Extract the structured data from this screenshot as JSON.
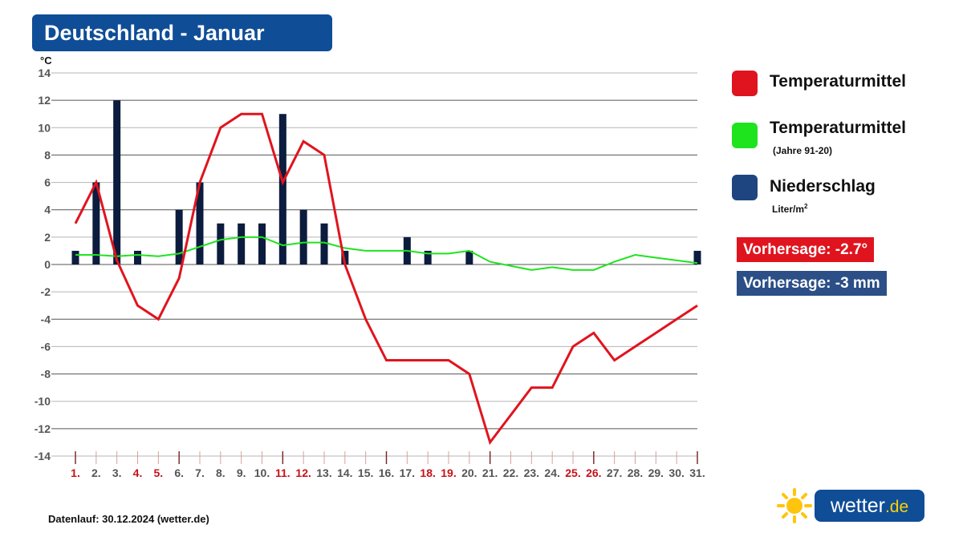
{
  "header": {
    "title": "Deutschland - Januar"
  },
  "chart_data": {
    "type": "line",
    "ylabel": "°C",
    "ylim": [
      -14,
      14
    ],
    "yticks": [
      14,
      12,
      10,
      8,
      6,
      4,
      2,
      0,
      -2,
      -4,
      -6,
      -8,
      -10,
      -12,
      -14
    ],
    "categories": [
      "1.",
      "2.",
      "3.",
      "4.",
      "5.",
      "6.",
      "7.",
      "8.",
      "9.",
      "10.",
      "11.",
      "12.",
      "13.",
      "14.",
      "15.",
      "16.",
      "17.",
      "18.",
      "19.",
      "20.",
      "21.",
      "22.",
      "23.",
      "24.",
      "25.",
      "26.",
      "27.",
      "28.",
      "29.",
      "30.",
      "31."
    ],
    "highlight_days": [
      1,
      4,
      5,
      11,
      12,
      18,
      19,
      25,
      26
    ],
    "grid": true,
    "series": [
      {
        "name": "Temperaturmittel",
        "kind": "line",
        "color": "#e0141e",
        "values": [
          3,
          6,
          0.3,
          -3,
          -4,
          -1,
          6,
          10,
          11,
          11,
          6,
          9,
          8,
          0,
          -4,
          -7,
          -7,
          -7,
          -7,
          -8,
          -13,
          -11,
          -9,
          -9,
          -6,
          -5,
          -7,
          -6,
          -5,
          -4,
          -3
        ]
      },
      {
        "name": "Temperaturmittel",
        "kind": "line",
        "color": "#1ee41e",
        "values": [
          0.7,
          0.7,
          0.6,
          0.7,
          0.6,
          0.8,
          1.3,
          1.8,
          2.0,
          2.0,
          1.4,
          1.6,
          1.6,
          1.2,
          1.0,
          1.0,
          1.0,
          0.8,
          0.8,
          1.0,
          0.2,
          -0.1,
          -0.4,
          -0.2,
          -0.4,
          -0.4,
          0.2,
          0.7,
          0.5,
          0.3,
          0.1
        ]
      },
      {
        "name": "Niederschlag",
        "kind": "bar",
        "color": "#0b1c3e",
        "values": [
          1,
          6,
          12,
          1,
          0,
          4,
          6,
          3,
          3,
          3,
          11,
          4,
          3,
          1,
          0,
          0,
          2,
          1,
          0,
          1,
          0,
          0,
          0,
          0,
          0,
          0,
          0,
          0,
          0,
          0,
          1
        ]
      }
    ]
  },
  "legend": {
    "items": [
      {
        "label": "Temperaturmittel",
        "sub": "",
        "color": "#e0141e"
      },
      {
        "label": "Temperaturmittel",
        "sub": "(Jahre 91-20)",
        "color": "#1ee41e"
      },
      {
        "label": "Niederschlag",
        "sub": "Liter/m",
        "sub_sup": "2",
        "color": "#1f4580"
      }
    ]
  },
  "forecast": {
    "temp": "Vorhersage: -2.7°",
    "temp_color": "#e0141e",
    "precip": "Vorhersage: -3 mm",
    "precip_color": "#2b4f86"
  },
  "footer": {
    "text": "Datenlauf: 30.12.2024 (wetter.de)"
  },
  "logo": {
    "text": "wetter",
    "tld": ".de",
    "icon": "sun-icon"
  }
}
